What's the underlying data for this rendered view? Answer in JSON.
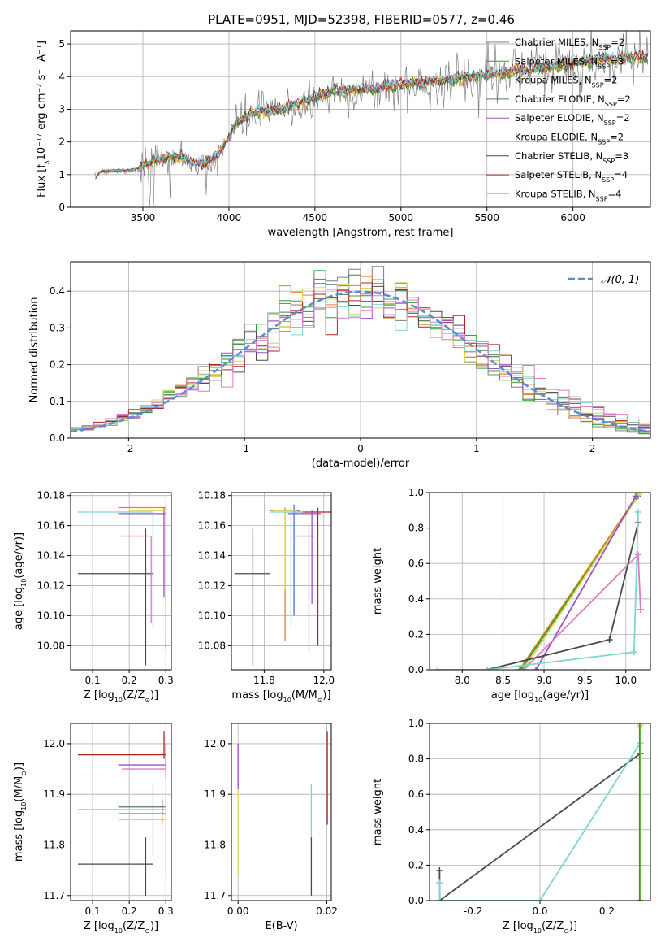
{
  "figure_title": "PLATE=0951, MJD=52398, FIBERID=0577, z=0.46",
  "colors": {
    "Chabrier MILES": "#7f7f7f",
    "Salpeter MILES": "#2ca02c",
    "Kroupa MILES": "#e8802a",
    "Chabrier ELODIE": "#4f7f4f",
    "Salpeter ELODIE": "#9b4fc6",
    "Kroupa ELODIE": "#d9d950",
    "Chabrier STELIB": "#4a4a4a",
    "Salpeter STELIB": "#b22222",
    "Kroupa STELIB": "#7fd3d3",
    "extra_pink": "#e377c2",
    "extra_blue": "#4f6fd6",
    "normal_curve": "#5b8ad6"
  },
  "chart_data": [
    {
      "id": "spectrum",
      "type": "line",
      "title": "PLATE=0951, MJD=52398, FIBERID=0577, z=0.46",
      "xlabel": "wavelength [Angstrom, rest frame]",
      "ylabel": "Flux [f_λ 10^-17 erg cm^-2 s^-1 A^-1]",
      "xlim": [
        3080,
        6450
      ],
      "ylim": [
        0,
        5.4
      ],
      "xticks": [
        3500,
        4000,
        4500,
        5000,
        5500,
        6000
      ],
      "yticks": [
        0,
        1,
        2,
        3,
        4,
        5
      ],
      "legend_position": "top-right",
      "legend": [
        {
          "label": "Chabrier MILES, N_SSP=2",
          "color": "#7f7f7f"
        },
        {
          "label": "Salpeter MILES, N_SSP=3",
          "color": "#2ca02c"
        },
        {
          "label": "Kroupa MILES, N_SSP=2",
          "color": "#e8802a"
        },
        {
          "label": "Chabrier ELODIE, N_SSP=2",
          "color": "#4f7f4f"
        },
        {
          "label": "Salpeter ELODIE, N_SSP=2",
          "color": "#9b4fc6"
        },
        {
          "label": "Kroupa ELODIE, N_SSP=2",
          "color": "#d9d950"
        },
        {
          "label": "Chabrier STELIB, N_SSP=3",
          "color": "#4a4a4a"
        },
        {
          "label": "Salpeter STELIB, N_SSP=4",
          "color": "#b22222"
        },
        {
          "label": "Kroupa STELIB, N_SSP=4",
          "color": "#7fd3d3"
        }
      ],
      "continuum": [
        [
          3220,
          0.85
        ],
        [
          3250,
          1.1
        ],
        [
          3450,
          1.15
        ],
        [
          3600,
          1.5
        ],
        [
          3700,
          1.55
        ],
        [
          3850,
          1.3
        ],
        [
          3950,
          1.7
        ],
        [
          4050,
          2.6
        ],
        [
          4150,
          2.9
        ],
        [
          4300,
          3.0
        ],
        [
          4450,
          3.25
        ],
        [
          4600,
          3.55
        ],
        [
          4800,
          3.6
        ],
        [
          5000,
          3.75
        ],
        [
          5200,
          3.85
        ],
        [
          5400,
          4.0
        ],
        [
          5600,
          4.1
        ],
        [
          5800,
          4.25
        ],
        [
          6000,
          4.4
        ],
        [
          6200,
          4.55
        ],
        [
          6400,
          4.6
        ]
      ]
    },
    {
      "id": "residuals",
      "type": "histogram",
      "xlabel": "(data-model)/error",
      "ylabel": "Normed distribution",
      "xlim": [
        -2.5,
        2.5
      ],
      "ylim": [
        0,
        0.48
      ],
      "xticks": [
        -2,
        -1,
        0,
        1,
        2
      ],
      "yticks": [
        0.0,
        0.1,
        0.2,
        0.3,
        0.4
      ],
      "bin_width": 0.1,
      "legend_position": "top-right",
      "legend": [
        {
          "label": "N(0,1)",
          "color": "#5b8ad6"
        }
      ],
      "series_colors": [
        "#7f7f7f",
        "#2ca02c",
        "#e8802a",
        "#4f7f4f",
        "#9b4fc6",
        "#d9d950",
        "#4a4a4a",
        "#b22222",
        "#7fd3d3",
        "#e377c2"
      ]
    },
    {
      "id": "age_vs_Z",
      "type": "errorbar",
      "xlabel": "Z [log10(Z/Z_sun)]",
      "ylabel": "age [log10(age/yr)]",
      "xlim": [
        0.04,
        0.315
      ],
      "ylim": [
        10.064,
        10.182
      ],
      "xticks": [
        0.1,
        0.2,
        0.3
      ],
      "yticks": [
        10.08,
        10.1,
        10.12,
        10.14,
        10.16,
        10.18
      ],
      "points": [
        {
          "x": 0.245,
          "y": 10.128,
          "xerr": [
            0.06,
            0.265
          ],
          "yerr": [
            10.067,
            10.158
          ],
          "color": "#4a4a4a"
        },
        {
          "x": 0.26,
          "y": 10.153,
          "xerr": [
            0.178,
            0.26
          ],
          "yerr": [
            10.095,
            10.153
          ],
          "color": "#e377c2"
        },
        {
          "x": 0.295,
          "y": 10.168,
          "xerr": [
            0.17,
            0.3
          ],
          "yerr": [
            10.112,
            10.172
          ],
          "color": "#9b4fc6"
        },
        {
          "x": 0.3,
          "y": 10.172,
          "xerr": [
            0.17,
            0.3
          ],
          "yerr": [
            10.078,
            10.172
          ],
          "color": "#e8802a"
        },
        {
          "x": 0.265,
          "y": 10.169,
          "xerr": [
            0.06,
            0.265
          ],
          "yerr": [
            10.092,
            10.169
          ],
          "color": "#7fd3d3"
        },
        {
          "x": 0.3,
          "y": 10.17,
          "xerr": [
            0.2,
            0.3
          ],
          "yerr": [
            10.085,
            10.174
          ],
          "color": "#d9d950"
        }
      ]
    },
    {
      "id": "age_vs_mass",
      "type": "errorbar",
      "xlabel": "mass [log10(M/M_sun)]",
      "ylabel": "",
      "xlim": [
        11.69,
        12.025
      ],
      "ylim": [
        10.064,
        10.182
      ],
      "xticks": [
        11.8,
        12.0
      ],
      "yticks": [
        10.08,
        10.1,
        10.12,
        10.14,
        10.16,
        10.18
      ],
      "points": [
        {
          "x": 11.762,
          "y": 10.128,
          "xerr": [
            11.7,
            11.82
          ],
          "yerr": [
            10.067,
            10.158
          ],
          "color": "#4a4a4a"
        },
        {
          "x": 11.87,
          "y": 10.17,
          "xerr": [
            11.82,
            11.9
          ],
          "yerr": [
            10.083,
            10.172
          ],
          "color": "#e8802a"
        },
        {
          "x": 11.9,
          "y": 10.17,
          "xerr": [
            11.85,
            11.92
          ],
          "yerr": [
            10.1,
            10.174
          ],
          "color": "#4f6fd6"
        },
        {
          "x": 11.87,
          "y": 10.17,
          "xerr": [
            11.83,
            11.91
          ],
          "yerr": [
            10.117,
            10.17
          ],
          "color": "#d9d950"
        },
        {
          "x": 11.95,
          "y": 10.153,
          "xerr": [
            11.9,
            11.97
          ],
          "yerr": [
            10.076,
            10.16
          ],
          "color": "#e377c2"
        },
        {
          "x": 11.98,
          "y": 10.169,
          "xerr": [
            11.9,
            12.025
          ],
          "yerr": [
            10.08,
            10.172
          ],
          "color": "#b22222"
        },
        {
          "x": 11.96,
          "y": 10.168,
          "xerr": [
            11.88,
            11.99
          ],
          "yerr": [
            10.108,
            10.17
          ],
          "color": "#9b4fc6"
        },
        {
          "x": 11.89,
          "y": 10.169,
          "xerr": [
            11.82,
            11.93
          ],
          "yerr": [
            10.092,
            10.172
          ],
          "color": "#7fd3d3"
        }
      ]
    },
    {
      "id": "weight_vs_age",
      "type": "line",
      "xlabel": "age [log10(age/yr)]",
      "ylabel": "mass weight",
      "xlim": [
        7.6,
        10.3
      ],
      "ylim": [
        0,
        1.0
      ],
      "xticks": [
        8.0,
        8.5,
        9.0,
        9.5,
        10.0
      ],
      "yticks": [
        0.0,
        0.2,
        0.4,
        0.6,
        0.8,
        1.0
      ],
      "series": [
        {
          "color": "#e8802a",
          "points": [
            [
              8.7,
              0.0
            ],
            [
              10.15,
              0.99
            ]
          ]
        },
        {
          "color": "#2ca02c",
          "points": [
            [
              8.72,
              0.0
            ],
            [
              10.15,
              0.98
            ]
          ]
        },
        {
          "color": "#d9d950",
          "points": [
            [
              8.75,
              0.0
            ],
            [
              10.16,
              0.99
            ]
          ]
        },
        {
          "color": "#9b4fc6",
          "points": [
            [
              8.9,
              0.0
            ],
            [
              10.12,
              0.98
            ]
          ]
        },
        {
          "color": "#e377c2",
          "points": [
            [
              8.75,
              0.0
            ],
            [
              10.15,
              0.65
            ],
            [
              10.18,
              0.34
            ]
          ]
        },
        {
          "color": "#4a4a4a",
          "points": [
            [
              8.3,
              0.0
            ],
            [
              9.8,
              0.17
            ],
            [
              10.15,
              0.83
            ]
          ]
        },
        {
          "color": "#7fd3d3",
          "points": [
            [
              7.7,
              0.0
            ],
            [
              8.3,
              0.0
            ],
            [
              10.1,
              0.1
            ],
            [
              10.15,
              0.89
            ]
          ]
        }
      ]
    },
    {
      "id": "mass_vs_Z",
      "type": "errorbar",
      "xlabel": "Z [log10(Z/Z_sun)]",
      "ylabel": "mass [log10(M/M_sun)]",
      "xlim": [
        0.04,
        0.315
      ],
      "ylim": [
        11.69,
        12.04
      ],
      "xticks": [
        0.1,
        0.2,
        0.3
      ],
      "yticks": [
        11.7,
        11.8,
        11.9,
        12.0
      ],
      "points": [
        {
          "x": 0.245,
          "y": 11.762,
          "xerr": [
            0.06,
            0.265
          ],
          "yerr": [
            11.7,
            11.815
          ],
          "color": "#4a4a4a"
        },
        {
          "x": 0.265,
          "y": 11.87,
          "xerr": [
            0.06,
            0.3
          ],
          "yerr": [
            11.78,
            11.92
          ],
          "color": "#7fd3d3"
        },
        {
          "x": 0.295,
          "y": 11.978,
          "xerr": [
            0.06,
            0.3
          ],
          "yerr": [
            11.97,
            12.025
          ],
          "color": "#b22222"
        },
        {
          "x": 0.3,
          "y": 11.958,
          "xerr": [
            0.17,
            0.3
          ],
          "yerr": [
            11.94,
            12.0
          ],
          "color": "#9b4fc6"
        },
        {
          "x": 0.29,
          "y": 11.862,
          "xerr": [
            0.17,
            0.3
          ],
          "yerr": [
            11.84,
            11.88
          ],
          "color": "#e8802a"
        },
        {
          "x": 0.29,
          "y": 11.875,
          "xerr": [
            0.17,
            0.3
          ],
          "yerr": [
            11.86,
            11.89
          ],
          "color": "#4f7f4f"
        },
        {
          "x": 0.3,
          "y": 11.85,
          "xerr": [
            0.17,
            0.3
          ],
          "yerr": [
            11.74,
            11.91
          ],
          "color": "#d9d950"
        },
        {
          "x": 0.3,
          "y": 11.95,
          "xerr": [
            0.18,
            0.3
          ],
          "yerr": [
            11.93,
            11.96
          ],
          "color": "#e377c2"
        }
      ]
    },
    {
      "id": "mass_vs_EBV",
      "type": "errorbar",
      "xlabel": "E(B-V)",
      "ylabel": "",
      "xlim": [
        -0.0015,
        0.021
      ],
      "ylim": [
        11.69,
        12.04
      ],
      "xticks": [
        0.0,
        0.02
      ],
      "yticks": [
        11.7,
        11.8,
        11.9,
        12.0
      ],
      "points": [
        {
          "x": 0.0,
          "y": 11.96,
          "xerr": [
            0.0,
            0.0
          ],
          "yerr": [
            11.91,
            12.0
          ],
          "color": "#9b4fc6"
        },
        {
          "x": 0.0,
          "y": 11.85,
          "xerr": [
            0.0,
            0.0
          ],
          "yerr": [
            11.74,
            11.91
          ],
          "color": "#d9d950"
        },
        {
          "x": 0.0165,
          "y": 11.86,
          "xerr": [
            0.0165,
            0.0165
          ],
          "yerr": [
            11.81,
            11.92
          ],
          "color": "#7fd3d3"
        },
        {
          "x": 0.0165,
          "y": 11.76,
          "xerr": [
            0.0165,
            0.0165
          ],
          "yerr": [
            11.7,
            11.815
          ],
          "color": "#4a4a4a"
        },
        {
          "x": 0.0201,
          "y": 11.96,
          "xerr": [
            0.0201,
            0.0201
          ],
          "yerr": [
            11.84,
            12.025
          ],
          "color": "#b22222"
        }
      ]
    },
    {
      "id": "weight_vs_Z",
      "type": "line",
      "xlabel": "Z [log10(Z/Z_sun)]",
      "ylabel": "mass weight",
      "xlim": [
        -0.33,
        0.33
      ],
      "ylim": [
        0,
        1.0
      ],
      "xticks": [
        -0.2,
        0.0,
        0.2
      ],
      "yticks": [
        0.0,
        0.2,
        0.4,
        0.6,
        0.8,
        1.0
      ],
      "series": [
        {
          "color": "#4a4a4a",
          "points": [
            [
              -0.3,
              0.17
            ],
            [
              -0.3,
              0.0
            ],
            [
              0.3,
              0.83
            ]
          ]
        },
        {
          "color": "#7fd3d3",
          "points": [
            [
              -0.3,
              0.1
            ],
            [
              -0.3,
              0.0
            ],
            [
              0.0,
              0.0
            ],
            [
              0.3,
              0.89
            ]
          ]
        },
        {
          "color": "#d9d950",
          "points": [
            [
              0.3,
              0.0
            ],
            [
              0.3,
              0.99
            ]
          ]
        },
        {
          "color": "#2ca02c",
          "points": [
            [
              0.298,
              0.0
            ],
            [
              0.298,
              0.98
            ]
          ]
        }
      ]
    }
  ]
}
